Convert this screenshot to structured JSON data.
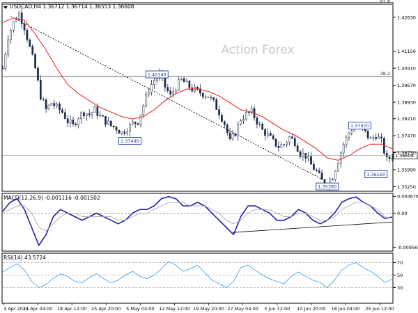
{
  "chart_data": [
    {
      "type": "candlestick",
      "panel": "price",
      "title": "USDCAD,H4  1.36712 1.36714 1.36553 1.36608",
      "watermark": "Action Forex",
      "x_tick_labels": [
        "3 Apr 2025",
        "11 Apr 04:00",
        "18 Apr 12:00",
        "25 Apr 20:00",
        "5 May 04:00",
        "12 May 12:00",
        "19 May 20:00",
        "27 May 04:00",
        "3 Jun 12:00",
        "10 Jun 20:00",
        "18 Jun 04:00",
        "25 Jun 12:00"
      ],
      "y_tick_labels": [
        "1.42630",
        "1.41150",
        "1.40410",
        "1.39670",
        "1.38930",
        "1.38210",
        "1.37470",
        "1.36730",
        "1.35990",
        "1.35250"
      ],
      "ylim": [
        1.3505,
        1.4326
      ],
      "last_price": 1.36608,
      "last_price_label": "1.36608",
      "fib_levels": [
        {
          "label": "61.8",
          "value": 1.4319
        },
        {
          "label": "38.2",
          "value": 1.4005
        }
      ],
      "annotations": [
        {
          "text": "1.40140",
          "value": 1.4014
        },
        {
          "text": "1.37490",
          "value": 1.3749
        },
        {
          "text": "1.37970",
          "value": 1.3797
        },
        {
          "text": "1.36160",
          "value": 1.3616
        },
        {
          "text": "1.35380",
          "value": 1.3538
        }
      ],
      "close_path": [
        [
          0,
          1.404
        ],
        [
          2,
          1.418
        ],
        [
          4,
          1.424
        ],
        [
          6,
          1.428
        ],
        [
          8,
          1.422
        ],
        [
          10,
          1.413
        ],
        [
          12,
          1.404
        ],
        [
          14,
          1.392
        ],
        [
          16,
          1.386
        ],
        [
          18,
          1.389
        ],
        [
          20,
          1.387
        ],
        [
          22,
          1.385
        ],
        [
          24,
          1.381
        ],
        [
          26,
          1.379
        ],
        [
          28,
          1.383
        ],
        [
          30,
          1.385
        ],
        [
          32,
          1.384
        ],
        [
          34,
          1.386
        ],
        [
          36,
          1.383
        ],
        [
          38,
          1.381
        ],
        [
          40,
          1.379
        ],
        [
          42,
          1.378
        ],
        [
          44,
          1.376
        ],
        [
          46,
          1.378
        ],
        [
          48,
          1.38
        ],
        [
          50,
          1.381
        ],
        [
          52,
          1.388
        ],
        [
          54,
          1.395
        ],
        [
          56,
          1.399
        ],
        [
          58,
          1.401
        ],
        [
          60,
          1.396
        ],
        [
          62,
          1.392
        ],
        [
          64,
          1.396
        ],
        [
          66,
          1.399
        ],
        [
          68,
          1.397
        ],
        [
          70,
          1.395
        ],
        [
          72,
          1.394
        ],
        [
          74,
          1.393
        ],
        [
          76,
          1.392
        ],
        [
          78,
          1.389
        ],
        [
          80,
          1.385
        ],
        [
          82,
          1.38
        ],
        [
          84,
          1.372
        ],
        [
          86,
          1.376
        ],
        [
          88,
          1.382
        ],
        [
          90,
          1.384
        ],
        [
          92,
          1.385
        ],
        [
          94,
          1.381
        ],
        [
          96,
          1.377
        ],
        [
          98,
          1.375
        ],
        [
          100,
          1.372
        ],
        [
          102,
          1.37
        ],
        [
          104,
          1.371
        ],
        [
          106,
          1.374
        ],
        [
          108,
          1.372
        ],
        [
          110,
          1.367
        ],
        [
          112,
          1.366
        ],
        [
          114,
          1.362
        ],
        [
          116,
          1.359
        ],
        [
          118,
          1.355
        ],
        [
          120,
          1.354
        ],
        [
          122,
          1.357
        ],
        [
          124,
          1.364
        ],
        [
          126,
          1.371
        ],
        [
          128,
          1.376
        ],
        [
          130,
          1.379
        ],
        [
          132,
          1.378
        ],
        [
          134,
          1.376
        ],
        [
          136,
          1.373
        ],
        [
          138,
          1.375
        ],
        [
          140,
          1.372
        ],
        [
          142,
          1.364
        ],
        [
          144,
          1.366
        ]
      ],
      "ema_path": [
        [
          0,
          1.424
        ],
        [
          4,
          1.426
        ],
        [
          8,
          1.425
        ],
        [
          12,
          1.419
        ],
        [
          16,
          1.412
        ],
        [
          20,
          1.404
        ],
        [
          24,
          1.397
        ],
        [
          28,
          1.393
        ],
        [
          32,
          1.39
        ],
        [
          36,
          1.387
        ],
        [
          40,
          1.385
        ],
        [
          44,
          1.383
        ],
        [
          48,
          1.382
        ],
        [
          52,
          1.383
        ],
        [
          56,
          1.386
        ],
        [
          60,
          1.39
        ],
        [
          64,
          1.393
        ],
        [
          68,
          1.395
        ],
        [
          72,
          1.395
        ],
        [
          76,
          1.394
        ],
        [
          80,
          1.392
        ],
        [
          84,
          1.389
        ],
        [
          88,
          1.386
        ],
        [
          92,
          1.385
        ],
        [
          96,
          1.383
        ],
        [
          100,
          1.38
        ],
        [
          104,
          1.377
        ],
        [
          108,
          1.375
        ],
        [
          112,
          1.372
        ],
        [
          116,
          1.369
        ],
        [
          120,
          1.365
        ],
        [
          124,
          1.364
        ],
        [
          128,
          1.366
        ],
        [
          132,
          1.369
        ],
        [
          136,
          1.371
        ],
        [
          140,
          1.371
        ],
        [
          144,
          1.369
        ]
      ],
      "trend_line": [
        [
          3,
          1.4266
        ],
        [
          118,
          1.3558
        ]
      ]
    },
    {
      "type": "line",
      "panel": "macd",
      "title": "MACD(12,26,9) -0.001116 -0.001502",
      "y_tick_labels": [
        "0.004676",
        "0.00",
        "-0.009568"
      ],
      "ylim": [
        -0.0106,
        0.0055
      ],
      "series": [
        {
          "name": "MACD",
          "color": "#1f1fa8",
          "values": [
            0.0005,
            0.003,
            0.004,
            0.001,
            -0.004,
            -0.009,
            -0.006,
            -0.001,
            0.001,
            0.0,
            -0.001,
            -0.002,
            -0.001,
            0.0,
            -0.001,
            -0.002,
            -0.003,
            -0.002,
            0.0,
            0.001,
            0.001,
            0.002,
            0.004,
            0.0046,
            0.004,
            0.002,
            0.002,
            0.003,
            0.002,
            0.0,
            -0.002,
            -0.004,
            -0.006,
            -0.001,
            0.002,
            0.002,
            0.001,
            0.0,
            -0.002,
            -0.002,
            -0.001,
            0.001,
            0.0,
            -0.002,
            -0.003,
            -0.002,
            0.0,
            0.003,
            0.004,
            0.0045,
            0.003,
            0.002,
            0.0,
            -0.0015,
            -0.0011
          ]
        },
        {
          "name": "Signal",
          "color": "#aaaaaa",
          "values": [
            0.0,
            0.001,
            0.002,
            0.002,
            0.0,
            -0.004,
            -0.005,
            -0.003,
            -0.001,
            0.0,
            0.0,
            -0.001,
            -0.001,
            -0.001,
            -0.001,
            -0.001,
            -0.002,
            -0.002,
            -0.001,
            0.0,
            0.0,
            0.001,
            0.002,
            0.003,
            0.003,
            0.003,
            0.002,
            0.002,
            0.002,
            0.001,
            0.0,
            -0.002,
            -0.003,
            -0.002,
            0.0,
            0.001,
            0.001,
            0.001,
            0.0,
            -0.001,
            -0.001,
            0.0,
            0.0,
            -0.001,
            -0.002,
            -0.002,
            -0.001,
            0.001,
            0.002,
            0.003,
            0.003,
            0.002,
            0.001,
            -0.001,
            -0.0015
          ]
        }
      ],
      "support_line": [
        [
          85,
          -0.0054
        ],
        [
          144,
          -0.0025
        ]
      ]
    },
    {
      "type": "line",
      "panel": "rsi",
      "title": "RSI(14) 43.5724",
      "y_tick_labels": [
        "70",
        "50",
        "30"
      ],
      "ylim": [
        5,
        85
      ],
      "levels": [
        70,
        50,
        30
      ],
      "series": [
        {
          "name": "RSI",
          "color": "#3399ee",
          "values": [
            55,
            62,
            68,
            58,
            40,
            30,
            35,
            45,
            52,
            48,
            40,
            38,
            46,
            52,
            44,
            38,
            42,
            50,
            56,
            48,
            44,
            50,
            60,
            72,
            66,
            56,
            60,
            66,
            54,
            42,
            36,
            30,
            40,
            62,
            66,
            58,
            50,
            44,
            40,
            36,
            48,
            55,
            48,
            42,
            38,
            30,
            42,
            58,
            66,
            70,
            62,
            56,
            48,
            38,
            43.57
          ]
        }
      ]
    }
  ]
}
